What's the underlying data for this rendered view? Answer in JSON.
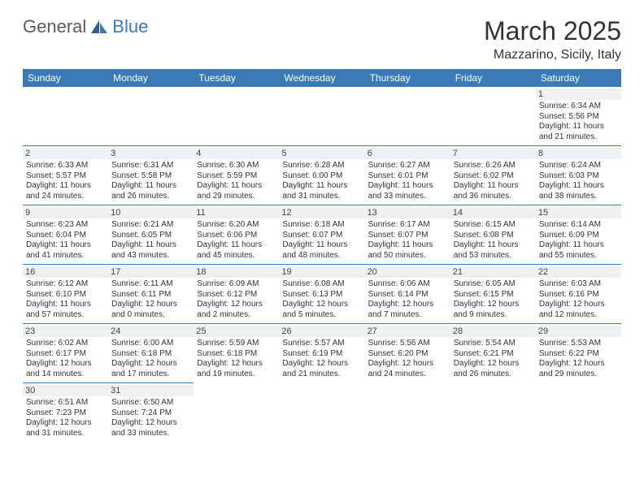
{
  "logo": {
    "general": "General",
    "blue": "Blue"
  },
  "title": "March 2025",
  "location": "Mazzarino, Sicily, Italy",
  "weekdays": [
    "Sunday",
    "Monday",
    "Tuesday",
    "Wednesday",
    "Thursday",
    "Friday",
    "Saturday"
  ],
  "colors": {
    "accent": "#3b7ab5",
    "text": "#333333",
    "daybg": "#eef1f3"
  },
  "grid": [
    [
      null,
      null,
      null,
      null,
      null,
      null,
      {
        "n": "1",
        "sr": "6:34 AM",
        "ss": "5:56 PM",
        "dh": "11",
        "dm": "21"
      }
    ],
    [
      {
        "n": "2",
        "sr": "6:33 AM",
        "ss": "5:57 PM",
        "dh": "11",
        "dm": "24"
      },
      {
        "n": "3",
        "sr": "6:31 AM",
        "ss": "5:58 PM",
        "dh": "11",
        "dm": "26"
      },
      {
        "n": "4",
        "sr": "6:30 AM",
        "ss": "5:59 PM",
        "dh": "11",
        "dm": "29"
      },
      {
        "n": "5",
        "sr": "6:28 AM",
        "ss": "6:00 PM",
        "dh": "11",
        "dm": "31"
      },
      {
        "n": "6",
        "sr": "6:27 AM",
        "ss": "6:01 PM",
        "dh": "11",
        "dm": "33"
      },
      {
        "n": "7",
        "sr": "6:26 AM",
        "ss": "6:02 PM",
        "dh": "11",
        "dm": "36"
      },
      {
        "n": "8",
        "sr": "6:24 AM",
        "ss": "6:03 PM",
        "dh": "11",
        "dm": "38"
      }
    ],
    [
      {
        "n": "9",
        "sr": "6:23 AM",
        "ss": "6:04 PM",
        "dh": "11",
        "dm": "41"
      },
      {
        "n": "10",
        "sr": "6:21 AM",
        "ss": "6:05 PM",
        "dh": "11",
        "dm": "43"
      },
      {
        "n": "11",
        "sr": "6:20 AM",
        "ss": "6:06 PM",
        "dh": "11",
        "dm": "45"
      },
      {
        "n": "12",
        "sr": "6:18 AM",
        "ss": "6:07 PM",
        "dh": "11",
        "dm": "48"
      },
      {
        "n": "13",
        "sr": "6:17 AM",
        "ss": "6:07 PM",
        "dh": "11",
        "dm": "50"
      },
      {
        "n": "14",
        "sr": "6:15 AM",
        "ss": "6:08 PM",
        "dh": "11",
        "dm": "53"
      },
      {
        "n": "15",
        "sr": "6:14 AM",
        "ss": "6:09 PM",
        "dh": "11",
        "dm": "55"
      }
    ],
    [
      {
        "n": "16",
        "sr": "6:12 AM",
        "ss": "6:10 PM",
        "dh": "11",
        "dm": "57"
      },
      {
        "n": "17",
        "sr": "6:11 AM",
        "ss": "6:11 PM",
        "dh": "12",
        "dm": "0"
      },
      {
        "n": "18",
        "sr": "6:09 AM",
        "ss": "6:12 PM",
        "dh": "12",
        "dm": "2"
      },
      {
        "n": "19",
        "sr": "6:08 AM",
        "ss": "6:13 PM",
        "dh": "12",
        "dm": "5"
      },
      {
        "n": "20",
        "sr": "6:06 AM",
        "ss": "6:14 PM",
        "dh": "12",
        "dm": "7"
      },
      {
        "n": "21",
        "sr": "6:05 AM",
        "ss": "6:15 PM",
        "dh": "12",
        "dm": "9"
      },
      {
        "n": "22",
        "sr": "6:03 AM",
        "ss": "6:16 PM",
        "dh": "12",
        "dm": "12"
      }
    ],
    [
      {
        "n": "23",
        "sr": "6:02 AM",
        "ss": "6:17 PM",
        "dh": "12",
        "dm": "14"
      },
      {
        "n": "24",
        "sr": "6:00 AM",
        "ss": "6:18 PM",
        "dh": "12",
        "dm": "17"
      },
      {
        "n": "25",
        "sr": "5:59 AM",
        "ss": "6:18 PM",
        "dh": "12",
        "dm": "19"
      },
      {
        "n": "26",
        "sr": "5:57 AM",
        "ss": "6:19 PM",
        "dh": "12",
        "dm": "21"
      },
      {
        "n": "27",
        "sr": "5:56 AM",
        "ss": "6:20 PM",
        "dh": "12",
        "dm": "24"
      },
      {
        "n": "28",
        "sr": "5:54 AM",
        "ss": "6:21 PM",
        "dh": "12",
        "dm": "26"
      },
      {
        "n": "29",
        "sr": "5:53 AM",
        "ss": "6:22 PM",
        "dh": "12",
        "dm": "29"
      }
    ],
    [
      {
        "n": "30",
        "sr": "6:51 AM",
        "ss": "7:23 PM",
        "dh": "12",
        "dm": "31"
      },
      {
        "n": "31",
        "sr": "6:50 AM",
        "ss": "7:24 PM",
        "dh": "12",
        "dm": "33"
      },
      null,
      null,
      null,
      null,
      null
    ]
  ]
}
